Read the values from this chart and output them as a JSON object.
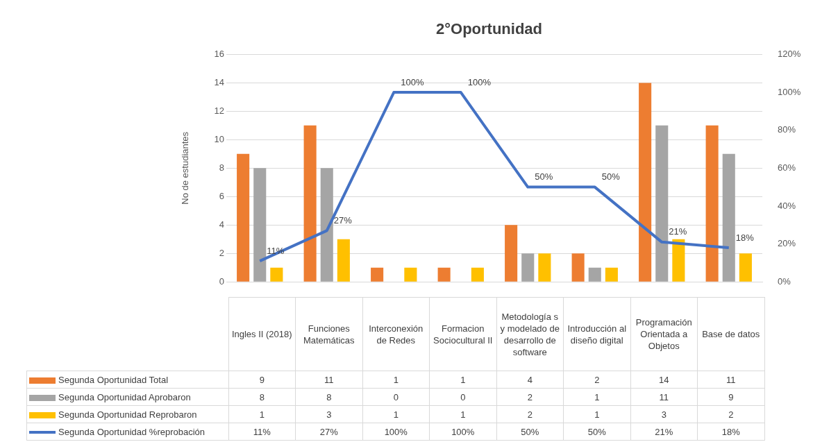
{
  "chart_data": {
    "type": "bar",
    "title": "2°Oportunidad",
    "ylabel": "No de estudiantes",
    "categories": [
      "Ingles II (2018)",
      "Funciones Matemáticas",
      "Interconexión de Redes",
      "Formacion Sociocultural II",
      "Metodología s y modelado de desarrollo de software",
      "Introducción al diseño digital",
      "Programación Orientada a Objetos",
      "Base de datos"
    ],
    "series": [
      {
        "name": "Segunda Oportunidad Total",
        "color": "#ed7d31",
        "values": [
          9,
          11,
          1,
          1,
          4,
          2,
          14,
          11
        ]
      },
      {
        "name": "Segunda Oportunidad Aprobaron",
        "color": "#a5a5a5",
        "values": [
          8,
          8,
          0,
          0,
          2,
          1,
          11,
          9
        ]
      },
      {
        "name": "Segunda Oportunidad Reprobaron",
        "color": "#ffc000",
        "values": [
          1,
          3,
          1,
          1,
          2,
          1,
          3,
          2
        ]
      },
      {
        "name": "Segunda Oportunidad %reprobación",
        "type": "line",
        "axis": "y2",
        "color": "#4472c4",
        "values": [
          11,
          27,
          100,
          100,
          50,
          50,
          21,
          18
        ],
        "value_labels": [
          "11%",
          "27%",
          "100%",
          "100%",
          "50%",
          "50%",
          "21%",
          "18%"
        ]
      }
    ],
    "ylim": [
      0,
      16
    ],
    "yticks": [
      0,
      2,
      4,
      6,
      8,
      10,
      12,
      14,
      16
    ],
    "y2lim": [
      0,
      120
    ],
    "y2ticks": [
      {
        "value": 0,
        "label": "0%"
      },
      {
        "value": 20,
        "label": "20%"
      },
      {
        "value": 40,
        "label": "40%"
      },
      {
        "value": 60,
        "label": "60%"
      },
      {
        "value": 80,
        "label": "80%"
      },
      {
        "value": 100,
        "label": "100%"
      },
      {
        "value": 120,
        "label": "120%"
      }
    ],
    "grid": "y",
    "legend": "bottom",
    "data_labels": true,
    "marker": "none"
  }
}
